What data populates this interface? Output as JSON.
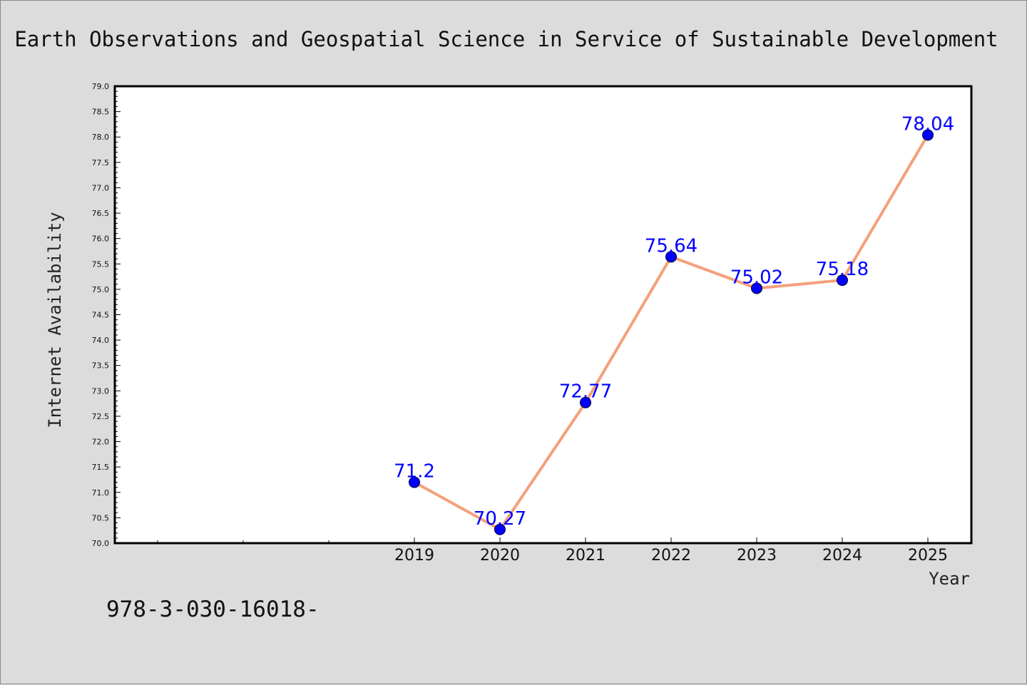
{
  "chart_data": {
    "type": "line",
    "title": "Earth Observations and Geospatial Science in Service of Sustainable Development",
    "xlabel": "Year",
    "ylabel": "Internet Availability",
    "x": [
      "2019",
      "2020",
      "2021",
      "2022",
      "2023",
      "2024",
      "2025"
    ],
    "series": [
      {
        "values": [
          71.2,
          70.27,
          72.77,
          75.64,
          75.02,
          75.18,
          78.04
        ],
        "labels": [
          "71.2",
          "70.27",
          "72.77",
          "75.64",
          "75.02",
          "75.18",
          "78.04"
        ]
      }
    ],
    "ylim": [
      70.0,
      79.0
    ],
    "yticks": [
      "70.0",
      "70.5",
      "71.0",
      "71.5",
      "72.0",
      "72.5",
      "73.0",
      "73.5",
      "74.0",
      "74.5",
      "75.0",
      "75.5",
      "76.0",
      "76.5",
      "77.0",
      "77.5",
      "78.0",
      "78.5",
      "79.0"
    ],
    "grid": false,
    "line_color": "#f4a07c",
    "marker_color": "#0000ff",
    "label_color": "#0000ff"
  },
  "footnote": "978-3-030-16018-"
}
